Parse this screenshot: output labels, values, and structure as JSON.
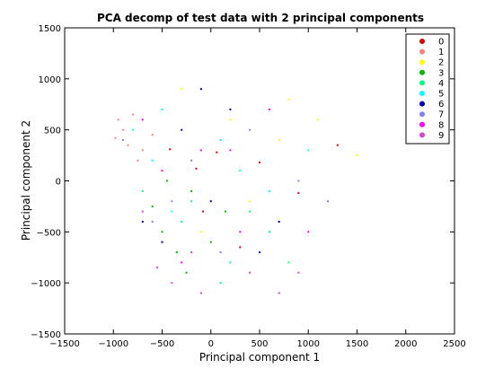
{
  "chart_data": {
    "type": "scatter",
    "title": "PCA decomp of test data with 2 principal components",
    "xlabel": "Principal component 1",
    "ylabel": "Principal component 2",
    "xlim": [
      -1500,
      2500
    ],
    "ylim": [
      -1500,
      1500
    ],
    "xticks": [
      -1500,
      -1000,
      -500,
      0,
      500,
      1000,
      1500,
      2000,
      2500
    ],
    "yticks": [
      -1500,
      -1000,
      -500,
      0,
      500,
      1000,
      1500
    ],
    "xtick_labels": [
      "−1500",
      "−1000",
      "−500",
      "0",
      "500",
      "1000",
      "1500",
      "2000",
      "2500"
    ],
    "ytick_labels": [
      "−1500",
      "−1000",
      "−500",
      "0",
      "500",
      "1000",
      "1500"
    ],
    "grid": false,
    "legend_position": "top-right",
    "series": [
      {
        "name": "0",
        "color": "#dd0000",
        "points": [
          [
            -150,
            120
          ],
          [
            60,
            280
          ],
          [
            -420,
            310
          ],
          [
            500,
            180
          ],
          [
            900,
            -120
          ],
          [
            -80,
            -300
          ],
          [
            1300,
            350
          ],
          [
            300,
            -650
          ]
        ]
      },
      {
        "name": "1",
        "color": "#ff8080",
        "points": [
          [
            -900,
            500
          ],
          [
            -850,
            350
          ],
          [
            -950,
            600
          ],
          [
            -700,
            300
          ],
          [
            -800,
            650
          ],
          [
            -600,
            450
          ],
          [
            -980,
            420
          ],
          [
            -750,
            200
          ]
        ]
      },
      {
        "name": "2",
        "color": "#ffff00",
        "points": [
          [
            200,
            600
          ],
          [
            700,
            400
          ],
          [
            -300,
            900
          ],
          [
            1100,
            600
          ],
          [
            400,
            -200
          ],
          [
            1500,
            250
          ],
          [
            -100,
            -500
          ],
          [
            800,
            800
          ]
        ]
      },
      {
        "name": "3",
        "color": "#00bb00",
        "points": [
          [
            -500,
            -500
          ],
          [
            -350,
            -700
          ],
          [
            -200,
            -100
          ],
          [
            -600,
            -250
          ],
          [
            -250,
            -900
          ],
          [
            -450,
            0
          ],
          [
            0,
            -600
          ],
          [
            150,
            -300
          ]
        ]
      },
      {
        "name": "4",
        "color": "#00ff80",
        "points": [
          [
            -300,
            -400
          ],
          [
            200,
            -800
          ],
          [
            600,
            -500
          ],
          [
            -700,
            -100
          ],
          [
            100,
            -1000
          ],
          [
            400,
            -300
          ],
          [
            800,
            -800
          ],
          [
            -200,
            -200
          ]
        ]
      },
      {
        "name": "5",
        "color": "#00ffff",
        "points": [
          [
            -600,
            200
          ],
          [
            -400,
            -300
          ],
          [
            100,
            400
          ],
          [
            -800,
            500
          ],
          [
            300,
            100
          ],
          [
            -500,
            700
          ],
          [
            600,
            -100
          ],
          [
            1000,
            300
          ]
        ]
      },
      {
        "name": "6",
        "color": "#0000bb",
        "points": [
          [
            -300,
            500
          ],
          [
            0,
            -200
          ],
          [
            500,
            -700
          ],
          [
            -500,
            -600
          ],
          [
            200,
            700
          ],
          [
            -100,
            900
          ],
          [
            700,
            -400
          ],
          [
            -700,
            -400
          ]
        ]
      },
      {
        "name": "7",
        "color": "#8080ff",
        "points": [
          [
            -200,
            200
          ],
          [
            400,
            500
          ],
          [
            -600,
            -400
          ],
          [
            900,
            0
          ],
          [
            -400,
            -200
          ],
          [
            100,
            -700
          ],
          [
            1200,
            -200
          ],
          [
            -900,
            400
          ]
        ]
      },
      {
        "name": "8",
        "color": "#ff00ff",
        "points": [
          [
            -100,
            300
          ],
          [
            300,
            -500
          ],
          [
            -500,
            100
          ],
          [
            600,
            700
          ],
          [
            -300,
            -800
          ],
          [
            1000,
            -500
          ],
          [
            200,
            300
          ],
          [
            -700,
            600
          ]
        ]
      },
      {
        "name": "9",
        "color": "#dd44cc",
        "points": [
          [
            -700,
            -300
          ],
          [
            -100,
            -1100
          ],
          [
            400,
            -900
          ],
          [
            -400,
            -1000
          ],
          [
            900,
            -900
          ],
          [
            -200,
            -700
          ],
          [
            700,
            -1100
          ],
          [
            -550,
            -850
          ]
        ]
      }
    ]
  }
}
